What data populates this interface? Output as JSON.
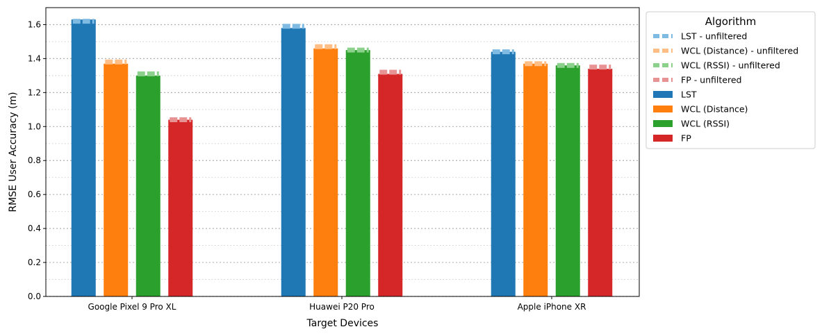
{
  "chart_data": {
    "type": "bar",
    "title": "",
    "xlabel": "Target Devices",
    "ylabel": "RMSE User Accuracy (m)",
    "ylim": [
      0,
      1.7
    ],
    "yticks": [
      "0.0",
      "0.2",
      "0.4",
      "0.6",
      "0.8",
      "1.0",
      "1.2",
      "1.4",
      "1.6"
    ],
    "grid": "horizontal dotted (major and minor)",
    "categories": [
      "Google Pixel 9 Pro XL",
      "Huawei P20 Pro",
      "Apple iPhone XR"
    ],
    "series": [
      {
        "name": "LST",
        "color": "#1f77b4",
        "values": [
          1.63,
          1.58,
          1.44
        ]
      },
      {
        "name": "WCL (Distance)",
        "color": "#ff7f0e",
        "values": [
          1.37,
          1.46,
          1.37
        ]
      },
      {
        "name": "WCL (RSSI)",
        "color": "#2ca02c",
        "values": [
          1.3,
          1.45,
          1.36
        ]
      },
      {
        "name": "FP",
        "color": "#d62728",
        "values": [
          1.04,
          1.31,
          1.34
        ]
      }
    ],
    "unfiltered_series": [
      {
        "name": "LST - unfiltered",
        "color": "#7fbae3",
        "values": [
          1.62,
          1.59,
          1.44
        ]
      },
      {
        "name": "WCL (Distance) - unfiltered",
        "color": "#ffbe85",
        "values": [
          1.38,
          1.47,
          1.37
        ]
      },
      {
        "name": "WCL (RSSI) - unfiltered",
        "color": "#8bd18b",
        "values": [
          1.31,
          1.45,
          1.36
        ]
      },
      {
        "name": "FP - unfiltered",
        "color": "#e89393",
        "values": [
          1.04,
          1.32,
          1.35
        ]
      }
    ],
    "legend": {
      "title": "Algorithm",
      "placement": "outside-right",
      "entries": [
        "LST - unfiltered",
        "WCL (Distance) - unfiltered",
        "WCL (RSSI) - unfiltered",
        "FP - unfiltered",
        "LST",
        "WCL (Distance)",
        "WCL (RSSI)",
        "FP"
      ]
    }
  }
}
